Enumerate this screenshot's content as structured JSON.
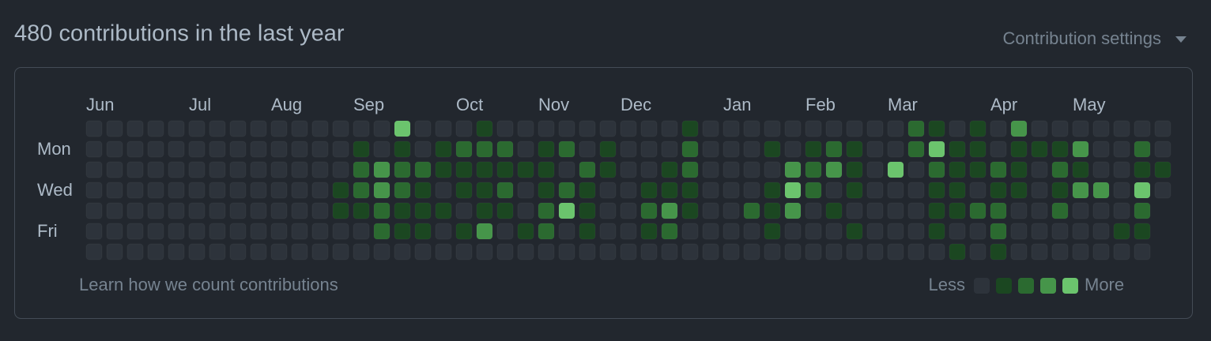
{
  "header": {
    "title": "480 contributions in the last year",
    "settings": "Contribution settings"
  },
  "graph": {
    "months": [
      "Jun",
      "Jul",
      "Aug",
      "Sep",
      "Oct",
      "Nov",
      "Dec",
      "Jan",
      "Feb",
      "Mar",
      "Apr",
      "May"
    ],
    "days": [
      "Mon",
      "Wed",
      "Fri"
    ],
    "level_colors": [
      "#2d333b",
      "#1b4721",
      "#2b6a30",
      "#46954a",
      "#6bc46d"
    ],
    "rows": [
      [
        0,
        0,
        0,
        0,
        0,
        0,
        0,
        0,
        0,
        0,
        0,
        0,
        0,
        0,
        0,
        4,
        0,
        0,
        0,
        1,
        0,
        0,
        0,
        0,
        0,
        0,
        0,
        0,
        0,
        1,
        0,
        0,
        0,
        0,
        0,
        0,
        0,
        0,
        0,
        0,
        2,
        1,
        0,
        1,
        0,
        3,
        0,
        0,
        0,
        0,
        0,
        0,
        0
      ],
      [
        0,
        0,
        0,
        0,
        0,
        0,
        0,
        0,
        0,
        0,
        0,
        0,
        0,
        1,
        0,
        1,
        0,
        1,
        2,
        2,
        2,
        0,
        1,
        2,
        0,
        1,
        0,
        0,
        0,
        2,
        0,
        0,
        0,
        1,
        0,
        1,
        2,
        1,
        0,
        0,
        2,
        4,
        1,
        1,
        0,
        1,
        1,
        1,
        3,
        0,
        0,
        2,
        0
      ],
      [
        0,
        0,
        0,
        0,
        0,
        0,
        0,
        0,
        0,
        0,
        0,
        0,
        0,
        2,
        3,
        2,
        2,
        1,
        1,
        1,
        1,
        1,
        1,
        0,
        2,
        1,
        0,
        0,
        1,
        2,
        0,
        0,
        0,
        0,
        3,
        2,
        3,
        1,
        0,
        4,
        0,
        2,
        1,
        1,
        2,
        1,
        0,
        2,
        1,
        0,
        0,
        1,
        1
      ],
      [
        0,
        0,
        0,
        0,
        0,
        0,
        0,
        0,
        0,
        0,
        0,
        0,
        1,
        2,
        3,
        2,
        1,
        0,
        1,
        1,
        2,
        0,
        1,
        2,
        1,
        0,
        0,
        1,
        1,
        1,
        0,
        0,
        0,
        1,
        4,
        2,
        0,
        1,
        0,
        0,
        0,
        1,
        1,
        0,
        1,
        1,
        0,
        1,
        3,
        3,
        0,
        4,
        0
      ],
      [
        0,
        0,
        0,
        0,
        0,
        0,
        0,
        0,
        0,
        0,
        0,
        0,
        1,
        1,
        2,
        1,
        1,
        1,
        0,
        1,
        1,
        0,
        2,
        4,
        1,
        0,
        0,
        2,
        3,
        1,
        0,
        0,
        2,
        1,
        3,
        0,
        1,
        0,
        0,
        0,
        0,
        1,
        1,
        2,
        2,
        0,
        0,
        2,
        0,
        0,
        0,
        2
      ],
      [
        0,
        0,
        0,
        0,
        0,
        0,
        0,
        0,
        0,
        0,
        0,
        0,
        0,
        0,
        2,
        1,
        1,
        0,
        1,
        3,
        0,
        1,
        2,
        0,
        1,
        0,
        0,
        1,
        2,
        0,
        0,
        0,
        0,
        1,
        0,
        0,
        0,
        1,
        0,
        0,
        0,
        1,
        0,
        0,
        2,
        0,
        0,
        0,
        0,
        0,
        1,
        1
      ],
      [
        0,
        0,
        0,
        0,
        0,
        0,
        0,
        0,
        0,
        0,
        0,
        0,
        0,
        0,
        0,
        0,
        0,
        0,
        0,
        0,
        0,
        0,
        0,
        0,
        0,
        0,
        0,
        0,
        0,
        0,
        0,
        0,
        0,
        0,
        0,
        0,
        0,
        0,
        0,
        0,
        0,
        0,
        1,
        0,
        1,
        0,
        0,
        0,
        0,
        0,
        0,
        0
      ]
    ]
  },
  "footer": {
    "learn": "Learn how we count contributions",
    "less": "Less",
    "more": "More"
  }
}
